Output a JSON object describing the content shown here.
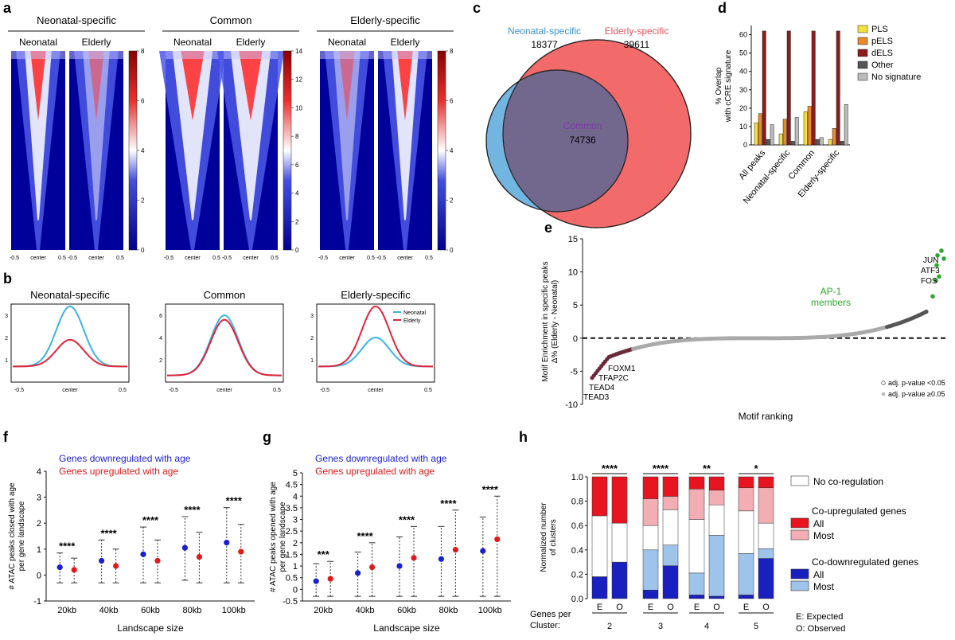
{
  "panels": {
    "a": {
      "letter": "a",
      "groups": [
        "Neonatal-specific",
        "Common",
        "Elderly-specific"
      ],
      "columns": [
        "Neonatal",
        "Elderly"
      ],
      "xticks": [
        "-0.5",
        "center",
        "0.5"
      ],
      "colorbars": [
        {
          "max": 8,
          "ticks": [
            "8",
            "6",
            "4",
            "2",
            "0"
          ]
        },
        {
          "max": 14,
          "ticks": [
            "14",
            "12",
            "10",
            "8",
            "6",
            "4",
            "2",
            "0"
          ]
        },
        {
          "max": 8,
          "ticks": [
            "8",
            "6",
            "4",
            "2",
            "0"
          ]
        }
      ]
    },
    "b": {
      "letter": "b",
      "titles": [
        "Neonatal-specific",
        "Common",
        "Elderly-specific"
      ],
      "xticks": [
        "-0.5",
        "center",
        "0.5"
      ],
      "yticks": [
        [
          "3",
          "2",
          "1"
        ],
        [
          "6",
          "4",
          "2"
        ],
        [
          "3",
          "2",
          "1"
        ]
      ],
      "legend": [
        "Neonatal",
        "Elderly"
      ]
    },
    "c": {
      "letter": "c",
      "left_label": "Neonatal-specific",
      "left_count": "18377",
      "right_label": "Elderly-specific",
      "right_count": "39611",
      "center_label": "Common",
      "center_count": "74736"
    },
    "d": {
      "letter": "d"
    },
    "e": {
      "letter": "e"
    },
    "f": {
      "letter": "f"
    },
    "g": {
      "letter": "g"
    },
    "h": {
      "letter": "h"
    }
  },
  "colors": {
    "neonatal": "#3bb4dd",
    "elderly": "#e3233b",
    "neo_text": "#3a8fd0",
    "eld_text": "#e5545c",
    "down": "#1a1fcf",
    "up": "#e01a1a",
    "ap1": "#2ea82e"
  },
  "chart_data": [
    {
      "id": "d",
      "type": "bar",
      "ylabel": "% Overlap\nwith cCRE signature",
      "categories": [
        "All peaks",
        "Neonatal-specific",
        "Common",
        "Elderly-specific"
      ],
      "ylim": [
        0,
        60
      ],
      "yticks": [
        "60",
        "50",
        "40",
        "30",
        "20",
        "10",
        "0"
      ],
      "series": [
        {
          "name": "PLS",
          "color": "#f2e23c",
          "values": [
            12,
            6,
            18,
            3
          ]
        },
        {
          "name": "pELS",
          "color": "#e98a2d",
          "values": [
            17,
            14,
            21,
            9
          ]
        },
        {
          "name": "dELS",
          "color": "#8c1b1b",
          "values": [
            62,
            62,
            62,
            62
          ]
        },
        {
          "name": "Other",
          "color": "#555555",
          "values": [
            3,
            2,
            3,
            2
          ]
        },
        {
          "name": "No signature",
          "color": "#bbbbbb",
          "values": [
            11,
            15,
            4,
            22
          ]
        }
      ]
    },
    {
      "id": "e",
      "type": "scatter",
      "xlabel": "Motif ranking",
      "ylabel": "Motif Enrichment in  specific peaks\nΔ% (Elderly - Neonatal)",
      "ylim": [
        -10,
        15
      ],
      "yticks": [
        "15",
        "10",
        "5",
        "0",
        "-5",
        "-10"
      ],
      "labels_top": [
        "JUN",
        "ATF3",
        "FOS"
      ],
      "group_label": "AP-1\nmembers",
      "labels_bottom": [
        "FOXM1",
        "TFAP2C",
        "TEAD4",
        "TEAD3"
      ],
      "legend": [
        "adj. p-value <0.05",
        "adj. p-value ≥0.05"
      ]
    },
    {
      "id": "f",
      "type": "scatter",
      "xlabel": "Landscape size",
      "ylabel": "# ATAC peaks closed with age\nper gene landscape",
      "categories": [
        "20kb",
        "40kb",
        "60kb",
        "80kb",
        "100kb"
      ],
      "ylim": [
        -1,
        4
      ],
      "yticks": [
        "4",
        "3",
        "2",
        "1",
        "0",
        "-1"
      ],
      "legend": [
        "Genes downregulated with age",
        "Genes upregulated with age"
      ],
      "significance": [
        "****",
        "****",
        "****",
        "****",
        "****"
      ],
      "series": [
        {
          "name": "Genes downregulated with age",
          "mean": [
            0.3,
            0.55,
            0.8,
            1.05,
            1.25
          ],
          "low": [
            -0.3,
            -0.3,
            -0.3,
            -0.2,
            -0.3
          ],
          "high": [
            0.85,
            1.35,
            1.85,
            2.25,
            2.6
          ]
        },
        {
          "name": "Genes upregulated with age",
          "mean": [
            0.2,
            0.35,
            0.55,
            0.7,
            0.9
          ],
          "low": [
            -0.3,
            -0.3,
            -0.3,
            -0.3,
            -0.3
          ],
          "high": [
            0.65,
            1.0,
            1.35,
            1.65,
            1.95
          ]
        }
      ]
    },
    {
      "id": "g",
      "type": "scatter",
      "xlabel": "Landscape size",
      "ylabel": "# ATAC peaks opened with age\nper gene landscape",
      "categories": [
        "20kb",
        "40kb",
        "60kb",
        "80kb",
        "100kb"
      ],
      "ylim": [
        -0.5,
        5
      ],
      "yticks": [
        "5",
        "4.5",
        "4",
        "3.5",
        "3",
        "2.5",
        "2",
        "1.5",
        "1",
        "0.5",
        "0",
        "-0.5"
      ],
      "legend": [
        "Genes downregulated with age",
        "Genes upregulated with age"
      ],
      "significance": [
        "***",
        "****",
        "****",
        "****",
        "****"
      ],
      "series": [
        {
          "name": "Genes downregulated with age",
          "mean": [
            0.35,
            0.7,
            1.0,
            1.3,
            1.65
          ],
          "low": [
            -0.3,
            -0.3,
            -0.3,
            -0.3,
            -0.3
          ],
          "high": [
            1.1,
            1.6,
            2.25,
            2.7,
            3.1
          ]
        },
        {
          "name": "Genes upregulated with age",
          "mean": [
            0.45,
            0.95,
            1.35,
            1.7,
            2.15
          ],
          "low": [
            -0.3,
            -0.3,
            -0.3,
            -0.3,
            -0.3
          ],
          "high": [
            1.2,
            2.0,
            2.7,
            3.4,
            4.0
          ]
        }
      ]
    },
    {
      "id": "h",
      "type": "bar",
      "ylabel": "Normalized number\nof clusters",
      "ylim": [
        0,
        1
      ],
      "yticks": [
        "1.0",
        "0.8",
        "0.6",
        "0.4",
        "0.2",
        "0.0"
      ],
      "row_label": "Genes per\nCluster:",
      "groups": [
        "2",
        "3",
        "4",
        "5"
      ],
      "bar_labels": [
        "E",
        "O"
      ],
      "significance": [
        "****",
        "****",
        "**",
        "*"
      ],
      "segments": [
        "Co-down All",
        "Co-down Most",
        "No co-regulation",
        "Co-up Most",
        "Co-up All"
      ],
      "segment_colors": [
        "#1a1fbf",
        "#9fc4ec",
        "#ffffff",
        "#f2aeb3",
        "#e8141f"
      ],
      "bars": [
        [
          0.18,
          0.0,
          0.5,
          0.0,
          0.32
        ],
        [
          0.3,
          0.0,
          0.32,
          0.0,
          0.38
        ],
        [
          0.07,
          0.33,
          0.2,
          0.22,
          0.18
        ],
        [
          0.27,
          0.17,
          0.29,
          0.11,
          0.16
        ],
        [
          0.03,
          0.18,
          0.44,
          0.25,
          0.1
        ],
        [
          0.02,
          0.5,
          0.25,
          0.12,
          0.11
        ],
        [
          0.03,
          0.34,
          0.35,
          0.19,
          0.09
        ],
        [
          0.33,
          0.08,
          0.21,
          0.29,
          0.09
        ]
      ],
      "legend": {
        "none": "No co-regulation",
        "up_title": "Co-upregulated genes",
        "up_all": "All",
        "up_most": "Most",
        "down_title": "Co-downregulated genes",
        "down_all": "All",
        "down_most": "Most",
        "key_e": "E: Expected",
        "key_o": "O: Observed"
      }
    }
  ]
}
